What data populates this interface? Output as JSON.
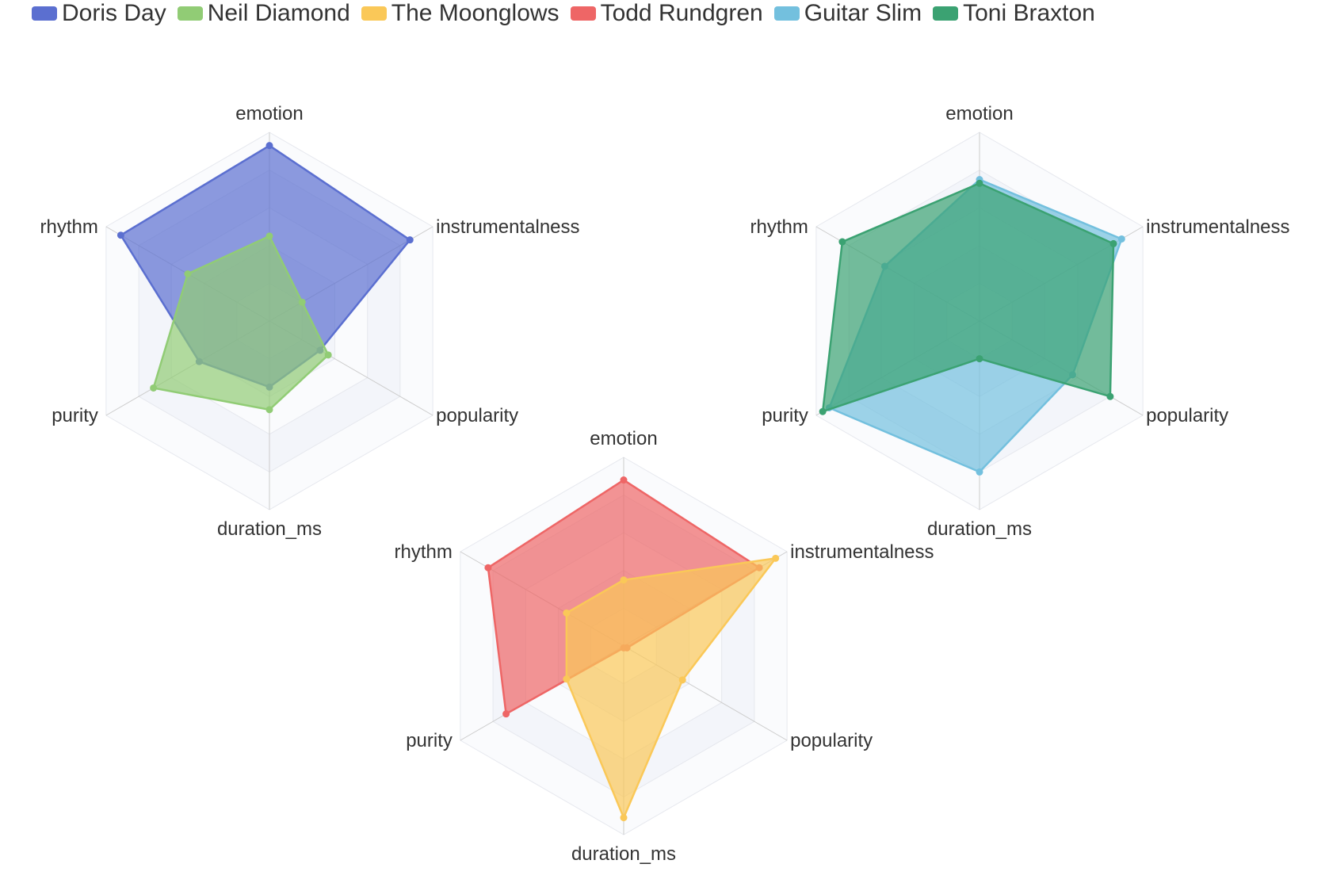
{
  "chart_data": {
    "type": "radar",
    "indicators": [
      "emotion",
      "instrumentalness",
      "popularity",
      "duration_ms",
      "purity",
      "rhythm"
    ],
    "max": 1,
    "rings": 5,
    "legend": [
      {
        "name": "Doris Day",
        "color": "#5b6fd0"
      },
      {
        "name": "Neil Diamond",
        "color": "#91cc75"
      },
      {
        "name": "The Moonglows",
        "color": "#fac858"
      },
      {
        "name": "Todd Rundgren",
        "color": "#ee6666"
      },
      {
        "name": "Guitar Slim",
        "color": "#73c0de"
      },
      {
        "name": "Toni Braxton",
        "color": "#3ba272"
      }
    ],
    "charts": [
      {
        "series": [
          {
            "name": "Doris Day",
            "color": "#5b6fd0",
            "values": [
              0.93,
              0.86,
              0.31,
              0.35,
              0.43,
              0.91
            ]
          },
          {
            "name": "Neil Diamond",
            "color": "#91cc75",
            "values": [
              0.45,
              0.2,
              0.36,
              0.47,
              0.71,
              0.5
            ]
          }
        ]
      },
      {
        "series": [
          {
            "name": "Todd Rundgren",
            "color": "#ee6666",
            "values": [
              0.88,
              0.83,
              0.02,
              0.01,
              0.72,
              0.83
            ]
          },
          {
            "name": "The Moonglows",
            "color": "#fac858",
            "values": [
              0.35,
              0.93,
              0.36,
              0.91,
              0.35,
              0.35
            ]
          }
        ]
      },
      {
        "series": [
          {
            "name": "Guitar Slim",
            "color": "#73c0de",
            "values": [
              0.75,
              0.87,
              0.57,
              0.8,
              0.92,
              0.58
            ]
          },
          {
            "name": "Toni Braxton",
            "color": "#3ba272",
            "values": [
              0.73,
              0.82,
              0.8,
              0.2,
              0.96,
              0.84
            ]
          }
        ]
      }
    ]
  }
}
